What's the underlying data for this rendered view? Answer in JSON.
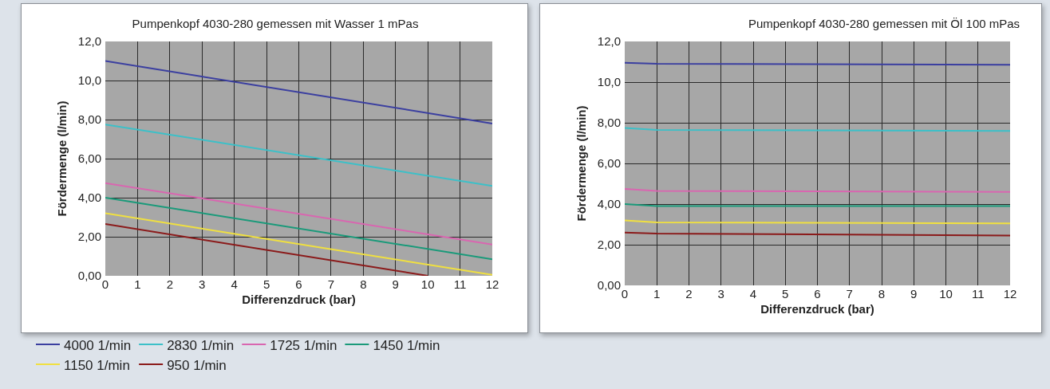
{
  "chart_data": [
    {
      "type": "line",
      "title": "Pumpenkopf 4030-280 gemessen mit Wasser 1 mPas",
      "xlabel": "Differenzdruck (bar)",
      "ylabel": "Fördermenge (l/min)",
      "x": [
        0,
        12
      ],
      "series": [
        {
          "name": "4000 1/min",
          "color": "#3b3fa0",
          "values": [
            11.0,
            7.8
          ]
        },
        {
          "name": "2830 1/min",
          "color": "#3cc0c8",
          "values": [
            7.75,
            4.6
          ]
        },
        {
          "name": "1725 1/min",
          "color": "#d966b0",
          "values": [
            4.75,
            1.6
          ]
        },
        {
          "name": "1450 1/min",
          "color": "#1a9a7a",
          "values": [
            4.0,
            0.85
          ]
        },
        {
          "name": "1150 1/min",
          "color": "#f0e040",
          "values": [
            3.2,
            0.05
          ]
        },
        {
          "name": "950 1/min",
          "color": "#8b1a1a",
          "x": [
            0,
            10
          ],
          "values": [
            2.65,
            0
          ]
        }
      ],
      "xlim": [
        0,
        12
      ],
      "ylim": [
        0,
        12
      ],
      "xticks": [
        0,
        1,
        2,
        3,
        4,
        5,
        6,
        7,
        8,
        9,
        10,
        11,
        12
      ],
      "yticks": [
        {
          "value": 0,
          "label": "0,00"
        },
        {
          "value": 2,
          "label": "2,00"
        },
        {
          "value": 4,
          "label": "4,00"
        },
        {
          "value": 6,
          "label": "6,00"
        },
        {
          "value": 8,
          "label": "8,00"
        },
        {
          "value": 10,
          "label": "10,0"
        },
        {
          "value": 12,
          "label": "12,0"
        }
      ],
      "grid": true,
      "legend": "bottom"
    },
    {
      "type": "line",
      "title": "Pumpenkopf 4030-280 gemessen mit Öl 100 mPas",
      "xlabel": "Differenzdruck (bar)",
      "ylabel": "Fördermenge (l/min)",
      "x": [
        0,
        1,
        12
      ],
      "series": [
        {
          "color": "#3b3fa0",
          "values": [
            10.95,
            10.9,
            10.85
          ]
        },
        {
          "color": "#3cc0c8",
          "values": [
            7.75,
            7.65,
            7.6
          ]
        },
        {
          "color": "#d966b0",
          "values": [
            4.75,
            4.65,
            4.6
          ]
        },
        {
          "color": "#1a9a7a",
          "values": [
            4.0,
            3.9,
            3.9
          ]
        },
        {
          "color": "#f0e040",
          "values": [
            3.2,
            3.1,
            3.05
          ]
        },
        {
          "color": "#8b1a1a",
          "values": [
            2.6,
            2.55,
            2.45
          ]
        }
      ],
      "xlim": [
        0,
        12
      ],
      "ylim": [
        0,
        12
      ],
      "xticks": [
        0,
        1,
        2,
        3,
        4,
        5,
        6,
        7,
        8,
        9,
        10,
        11,
        12
      ],
      "yticks": [
        {
          "value": 0,
          "label": "0,00"
        },
        {
          "value": 2,
          "label": "2,00"
        },
        {
          "value": 4,
          "label": "4,00"
        },
        {
          "value": 6,
          "label": "6,00"
        },
        {
          "value": 8,
          "label": "8,00"
        },
        {
          "value": 10,
          "label": "10,0"
        },
        {
          "value": 12,
          "label": "12,0"
        }
      ],
      "grid": true
    }
  ]
}
